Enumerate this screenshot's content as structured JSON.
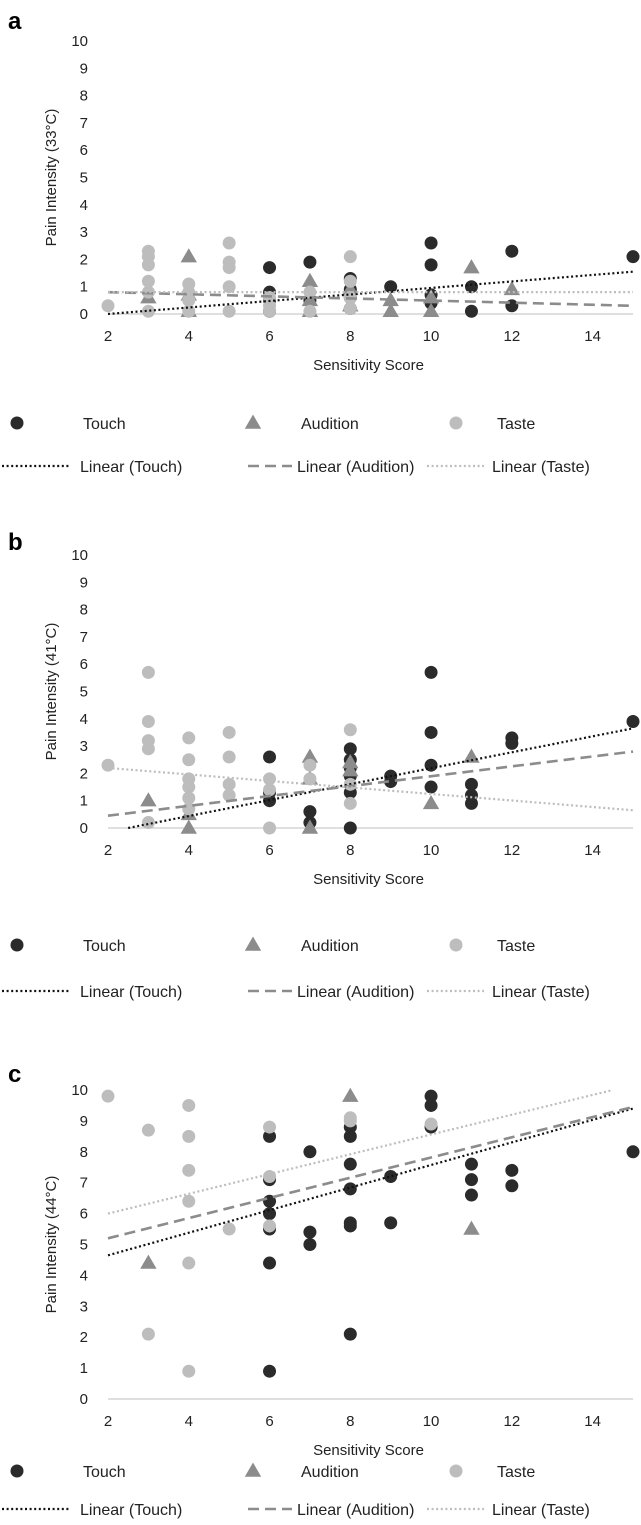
{
  "chart_data": [
    {
      "panel": "a",
      "type": "scatter",
      "xlabel": "Sensitivity Score",
      "ylabel": "Pain Intensity (33°C)",
      "xlim": [
        2,
        15
      ],
      "ylim": [
        0,
        10
      ],
      "x_ticks": [
        2,
        4,
        6,
        8,
        10,
        12,
        14
      ],
      "y_ticks": [
        0,
        1,
        2,
        3,
        4,
        5,
        6,
        7,
        8,
        9,
        10
      ],
      "grid": false,
      "legend_position": "bottom",
      "series": [
        {
          "name": "Touch",
          "marker": "circle",
          "color": "#2b2b2b",
          "x": [
            6,
            6,
            6,
            6,
            7,
            7,
            8,
            8,
            8,
            8,
            9,
            10,
            10,
            10,
            10,
            11,
            11,
            12,
            12,
            15
          ],
          "y": [
            1.7,
            0.8,
            0.5,
            0.1,
            1.9,
            0.5,
            1.3,
            0.9,
            0.6,
            0.2,
            1.0,
            2.6,
            1.8,
            0.7,
            0.4,
            1.0,
            0.1,
            2.3,
            0.3,
            2.1
          ]
        },
        {
          "name": "Audition",
          "marker": "triangle",
          "color": "#8c8c8c",
          "x": [
            3,
            4,
            4,
            4,
            7,
            7,
            7,
            8,
            8,
            9,
            9,
            10,
            10,
            11,
            12
          ],
          "y": [
            0.6,
            2.1,
            0.7,
            0.1,
            1.2,
            0.5,
            0.1,
            0.9,
            0.3,
            0.5,
            0.1,
            0.6,
            0.1,
            1.7,
            0.9
          ]
        },
        {
          "name": "Taste",
          "marker": "circle",
          "color": "#bdbdbd",
          "x": [
            2,
            3,
            3,
            3,
            3,
            3,
            3,
            4,
            4,
            4,
            4,
            5,
            5,
            5,
            5,
            5,
            6,
            6,
            6,
            7,
            7,
            8,
            8,
            8,
            8
          ],
          "y": [
            0.3,
            2.3,
            2.1,
            1.8,
            1.2,
            0.8,
            0.1,
            1.1,
            0.8,
            0.5,
            0.1,
            2.6,
            1.9,
            1.7,
            1.0,
            0.1,
            0.6,
            0.3,
            0.1,
            0.8,
            0.1,
            2.1,
            1.2,
            0.6,
            0.2
          ]
        }
      ],
      "trendlines": [
        {
          "name": "Linear (Touch)",
          "style": "dotted",
          "color": "#111111",
          "x": [
            2,
            15
          ],
          "y": [
            0.0,
            1.55
          ]
        },
        {
          "name": "Linear (Audition)",
          "style": "dashed",
          "color": "#8c8c8c",
          "x": [
            2,
            15
          ],
          "y": [
            0.8,
            0.3
          ]
        },
        {
          "name": "Linear (Taste)",
          "style": "dotted",
          "color": "#bdbdbd",
          "x": [
            2,
            15
          ],
          "y": [
            0.8,
            0.8
          ]
        }
      ]
    },
    {
      "panel": "b",
      "type": "scatter",
      "xlabel": "Sensitivity Score",
      "ylabel": "Pain Intensity (41°C)",
      "xlim": [
        2,
        15
      ],
      "ylim": [
        0,
        10
      ],
      "x_ticks": [
        2,
        4,
        6,
        8,
        10,
        12,
        14
      ],
      "y_ticks": [
        0,
        1,
        2,
        3,
        4,
        5,
        6,
        7,
        8,
        9,
        10
      ],
      "grid": false,
      "legend_position": "bottom",
      "series": [
        {
          "name": "Touch",
          "marker": "circle",
          "color": "#2b2b2b",
          "x": [
            6,
            6,
            6,
            7,
            7,
            8,
            8,
            8,
            8,
            8,
            8,
            9,
            9,
            10,
            10,
            10,
            10,
            11,
            11,
            11,
            12,
            12,
            15
          ],
          "y": [
            2.6,
            1.3,
            1.0,
            0.6,
            0.2,
            2.9,
            2.5,
            2.2,
            1.9,
            1.3,
            0.0,
            1.9,
            1.7,
            5.7,
            3.5,
            2.3,
            1.5,
            1.6,
            1.2,
            0.9,
            3.3,
            3.1,
            3.9
          ]
        },
        {
          "name": "Audition",
          "marker": "triangle",
          "color": "#8c8c8c",
          "x": [
            3,
            4,
            4,
            7,
            7,
            7,
            8,
            8,
            10,
            11
          ],
          "y": [
            1.0,
            0.5,
            0.0,
            2.6,
            1.8,
            0.0,
            2.4,
            2.1,
            0.9,
            2.6
          ]
        },
        {
          "name": "Taste",
          "marker": "circle",
          "color": "#bdbdbd",
          "x": [
            2,
            3,
            3,
            3,
            3,
            3,
            4,
            4,
            4,
            4,
            4,
            4,
            5,
            5,
            5,
            5,
            6,
            6,
            6,
            7,
            7,
            8,
            8,
            8
          ],
          "y": [
            2.3,
            5.7,
            3.9,
            3.2,
            2.9,
            0.2,
            3.3,
            2.5,
            1.8,
            1.5,
            1.1,
            0.7,
            3.5,
            2.6,
            1.6,
            1.2,
            1.8,
            1.4,
            0.0,
            2.3,
            1.8,
            3.6,
            1.6,
            0.9
          ]
        }
      ],
      "trendlines": [
        {
          "name": "Linear (Touch)",
          "style": "dotted",
          "color": "#111111",
          "x": [
            2.5,
            15
          ],
          "y": [
            0.0,
            3.65
          ]
        },
        {
          "name": "Linear (Audition)",
          "style": "dashed",
          "color": "#8c8c8c",
          "x": [
            2,
            15
          ],
          "y": [
            0.45,
            2.8
          ]
        },
        {
          "name": "Linear (Taste)",
          "style": "dotted",
          "color": "#bdbdbd",
          "x": [
            2,
            15
          ],
          "y": [
            2.2,
            0.65
          ]
        }
      ]
    },
    {
      "panel": "c",
      "type": "scatter",
      "xlabel": "Sensitivity Score",
      "ylabel": "Pain Intensity (44°C)",
      "xlim": [
        2,
        15
      ],
      "ylim": [
        0,
        10
      ],
      "x_ticks": [
        2,
        4,
        6,
        8,
        10,
        12,
        14
      ],
      "y_ticks": [
        0,
        1,
        2,
        3,
        4,
        5,
        6,
        7,
        8,
        9,
        10
      ],
      "grid": false,
      "legend_position": "bottom",
      "series": [
        {
          "name": "Touch",
          "marker": "circle",
          "color": "#2b2b2b",
          "x": [
            6,
            6,
            6,
            6,
            6,
            6,
            6,
            7,
            7,
            7,
            8,
            8,
            8,
            8,
            8,
            8,
            8,
            9,
            9,
            10,
            10,
            10,
            11,
            11,
            11,
            12,
            12,
            15
          ],
          "y": [
            8.5,
            7.1,
            6.4,
            6.0,
            5.5,
            4.4,
            0.9,
            8.0,
            5.4,
            5.0,
            8.8,
            8.5,
            7.6,
            6.8,
            5.7,
            5.6,
            2.1,
            7.2,
            5.7,
            9.8,
            9.5,
            8.8,
            7.6,
            7.1,
            6.6,
            7.4,
            6.9,
            8.0
          ]
        },
        {
          "name": "Audition",
          "marker": "triangle",
          "color": "#8c8c8c",
          "x": [
            3,
            8,
            11
          ],
          "y": [
            4.4,
            9.8,
            5.5
          ]
        },
        {
          "name": "Taste",
          "marker": "circle",
          "color": "#bdbdbd",
          "x": [
            2,
            3,
            3,
            4,
            4,
            4,
            4,
            4,
            4,
            5,
            6,
            6,
            6,
            8,
            8,
            10
          ],
          "y": [
            9.8,
            8.7,
            2.1,
            9.5,
            8.5,
            7.4,
            6.4,
            4.4,
            0.9,
            5.5,
            8.8,
            7.2,
            5.6,
            9.1,
            9.0,
            8.9
          ]
        }
      ],
      "trendlines": [
        {
          "name": "Linear (Touch)",
          "style": "dotted",
          "color": "#111111",
          "x": [
            2,
            15
          ],
          "y": [
            4.65,
            9.4
          ]
        },
        {
          "name": "Linear (Audition)",
          "style": "dashed",
          "color": "#8c8c8c",
          "x": [
            2,
            15
          ],
          "y": [
            5.2,
            9.45
          ]
        },
        {
          "name": "Linear (Taste)",
          "style": "dotted",
          "color": "#bdbdbd",
          "x": [
            2,
            14.5
          ],
          "y": [
            6.0,
            10.0
          ]
        }
      ]
    }
  ]
}
